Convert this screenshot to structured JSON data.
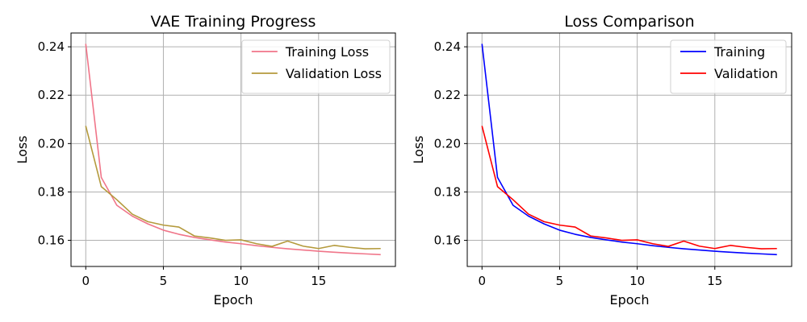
{
  "chart_data": [
    {
      "type": "line",
      "title": "VAE Training Progress",
      "xlabel": "Epoch",
      "ylabel": "Loss",
      "xlim": [
        -0.95,
        19.95
      ],
      "ylim": [
        0.1492,
        0.2457
      ],
      "xticks": [
        0,
        5,
        10,
        15
      ],
      "yticks": [
        0.16,
        0.18,
        0.2,
        0.22,
        0.24
      ],
      "ytick_labels": [
        "0.16",
        "0.18",
        "0.20",
        "0.22",
        "0.24"
      ],
      "grid": true,
      "legend_position": "upper right",
      "x": [
        0,
        1,
        2,
        3,
        4,
        5,
        6,
        7,
        8,
        9,
        10,
        11,
        12,
        13,
        14,
        15,
        16,
        17,
        18,
        19
      ],
      "series": [
        {
          "name": "Training Loss",
          "color": "#f07589",
          "values": [
            0.2412,
            0.186,
            0.1745,
            0.17,
            0.1668,
            0.1642,
            0.1625,
            0.1612,
            0.1602,
            0.1593,
            0.1586,
            0.1578,
            0.1571,
            0.1565,
            0.156,
            0.1555,
            0.1551,
            0.1547,
            0.1544,
            0.1541
          ]
        },
        {
          "name": "Validation Loss",
          "color": "#b49a3c",
          "values": [
            0.2073,
            0.1822,
            0.1768,
            0.1708,
            0.1677,
            0.1663,
            0.1655,
            0.1618,
            0.161,
            0.16,
            0.1602,
            0.1586,
            0.1575,
            0.1597,
            0.1576,
            0.1566,
            0.1579,
            0.1571,
            0.1565,
            0.1566
          ]
        }
      ]
    },
    {
      "type": "line",
      "title": "Loss Comparison",
      "xlabel": "Epoch",
      "ylabel": "Loss",
      "xlim": [
        -0.95,
        19.95
      ],
      "ylim": [
        0.1492,
        0.2457
      ],
      "xticks": [
        0,
        5,
        10,
        15
      ],
      "yticks": [
        0.16,
        0.18,
        0.2,
        0.22,
        0.24
      ],
      "ytick_labels": [
        "0.16",
        "0.18",
        "0.20",
        "0.22",
        "0.24"
      ],
      "grid": true,
      "legend_position": "upper right",
      "x": [
        0,
        1,
        2,
        3,
        4,
        5,
        6,
        7,
        8,
        9,
        10,
        11,
        12,
        13,
        14,
        15,
        16,
        17,
        18,
        19
      ],
      "series": [
        {
          "name": "Training",
          "color": "#0000ff",
          "values": [
            0.2412,
            0.186,
            0.1745,
            0.17,
            0.1668,
            0.1642,
            0.1625,
            0.1612,
            0.1602,
            0.1593,
            0.1586,
            0.1578,
            0.1571,
            0.1565,
            0.156,
            0.1555,
            0.1551,
            0.1547,
            0.1544,
            0.1541
          ]
        },
        {
          "name": "Validation",
          "color": "#ff0000",
          "values": [
            0.2073,
            0.1822,
            0.1768,
            0.1708,
            0.1677,
            0.1663,
            0.1655,
            0.1618,
            0.161,
            0.16,
            0.1602,
            0.1586,
            0.1575,
            0.1597,
            0.1576,
            0.1566,
            0.1579,
            0.1571,
            0.1565,
            0.1566
          ]
        }
      ]
    }
  ]
}
